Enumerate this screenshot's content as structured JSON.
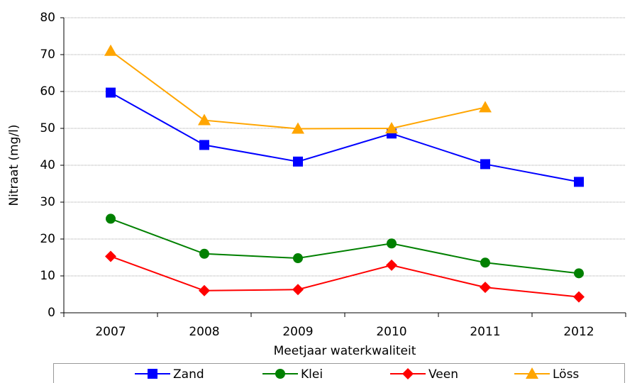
{
  "chart_data": {
    "type": "line",
    "categories": [
      "2007",
      "2008",
      "2009",
      "2010",
      "2011",
      "2012"
    ],
    "series": [
      {
        "name": "Zand",
        "color": "#0000ff",
        "marker": "square",
        "values": [
          59.7,
          45.5,
          41,
          48.6,
          40.3,
          35.5
        ]
      },
      {
        "name": "Klei",
        "color": "#008000",
        "marker": "circle",
        "values": [
          25.5,
          16,
          14.8,
          18.8,
          13.6,
          10.7
        ]
      },
      {
        "name": "Veen",
        "color": "#ff0000",
        "marker": "diamond",
        "values": [
          15.3,
          6,
          6.3,
          12.9,
          6.9,
          4.3
        ]
      },
      {
        "name": "Löss",
        "color": "#ffa500",
        "marker": "triangle",
        "values": [
          71,
          52.2,
          49.9,
          50,
          55.7,
          null
        ]
      }
    ],
    "x_label": "Meetjaar waterkwaliteit",
    "y_label": "Nitraat (mg/l)",
    "ylim": [
      0,
      80
    ],
    "yticks": [
      0,
      10,
      20,
      30,
      40,
      50,
      60,
      70,
      80
    ],
    "grid": true,
    "legend": "bottom"
  }
}
